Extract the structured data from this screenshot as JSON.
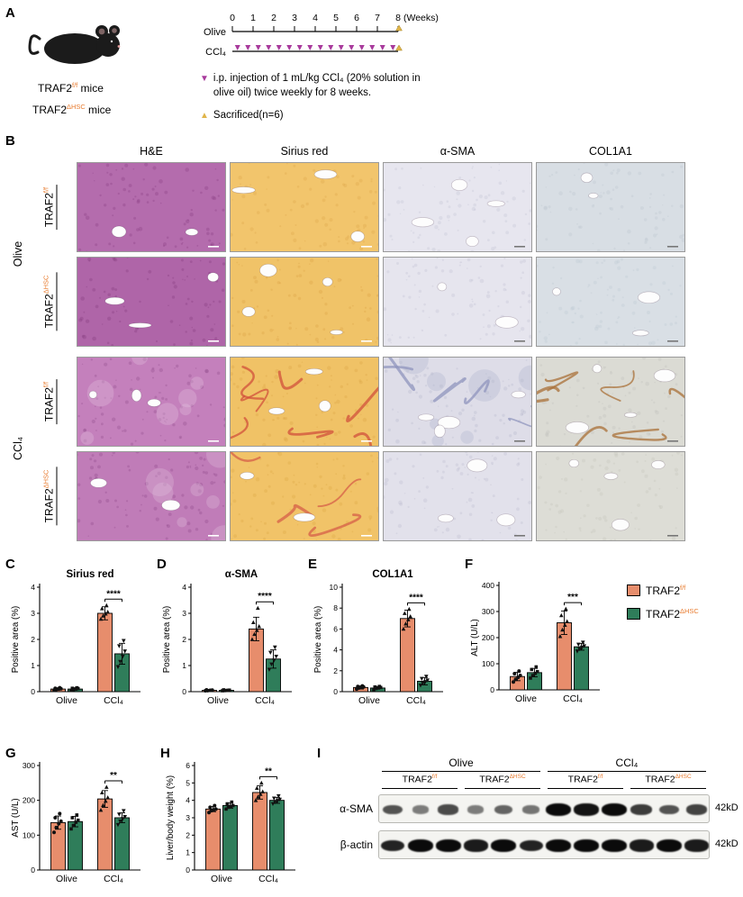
{
  "colors": {
    "traf2_ff": "#E78D6C",
    "traf2_dhsc": "#2F7D5A",
    "sup_orange": "#E87B2E",
    "injection_purple": "#A83A9C",
    "sacrifice_yellow": "#E0B54A"
  },
  "panel_a": {
    "label": "A",
    "mouse_lines": [
      {
        "prefix": "TRAF2",
        "sup": "f/f",
        "suffix": " mice"
      },
      {
        "prefix": "TRAF2",
        "sup": "ΔHSC",
        "suffix": " mice"
      }
    ],
    "timeline": {
      "weeks": [
        "0",
        "1",
        "2",
        "3",
        "4",
        "5",
        "6",
        "7",
        "8"
      ],
      "unit": "(Weeks)",
      "rows": [
        "Olive",
        "CCl₄"
      ]
    },
    "legend": [
      {
        "marker": "▼",
        "text": "i.p. injection of 1 mL/kg CCl₄ (20% solution in olive oil) twice weekly for 8 weeks."
      },
      {
        "marker": "▲",
        "text": "Sacrificed(n=6)"
      }
    ]
  },
  "panel_b": {
    "label": "B",
    "columns": [
      "H&E",
      "Sirius red",
      "α-SMA",
      "COL1A1"
    ],
    "groups": [
      {
        "label": "Olive"
      },
      {
        "label": "CCl₄"
      }
    ],
    "row_labels": [
      {
        "prefix": "TRAF2",
        "sup": "f/f"
      },
      {
        "prefix": "TRAF2",
        "sup": "ΔHSC"
      },
      {
        "prefix": "TRAF2",
        "sup": "f/f"
      },
      {
        "prefix": "TRAF2",
        "sup": "ΔHSC"
      }
    ],
    "cells": [
      [
        {
          "stain": "he",
          "base": "#B46CAD",
          "dot": "#8C4386",
          "scale": "#ffffff"
        },
        {
          "stain": "sirius",
          "base": "#F2C56C",
          "dot": "#DFA94D",
          "scale": "#ffffff"
        },
        {
          "stain": "asma",
          "base": "#E7E6EF",
          "dot": "#C6C5D6",
          "scale": "#777777"
        },
        {
          "stain": "col1a1",
          "base": "#D8DEE4",
          "dot": "#BFC8D2",
          "scale": "#777777"
        }
      ],
      [
        {
          "stain": "he",
          "base": "#AF65A8",
          "dot": "#863F80",
          "scale": "#ffffff"
        },
        {
          "stain": "sirius",
          "base": "#F0C368",
          "dot": "#DCA448",
          "scale": "#ffffff"
        },
        {
          "stain": "asma",
          "base": "#E6E5EE",
          "dot": "#C4C3D4",
          "scale": "#777777"
        },
        {
          "stain": "col1a1",
          "base": "#D9DFE5",
          "dot": "#C1CAD3",
          "scale": "#777777"
        }
      ],
      [
        {
          "stain": "he",
          "base": "#C480BC",
          "dot": "#94508E",
          "patch": "#E6C6E2",
          "scale": "#ffffff"
        },
        {
          "stain": "sirius",
          "base": "#F0C266",
          "dot": "#DDA647",
          "streak": "#D2503C",
          "streak_n": 7,
          "scale": "#ffffff"
        },
        {
          "stain": "asma",
          "base": "#DEDDE8",
          "dot": "#B9B9CD",
          "patch": "#A9AECB",
          "streak": "#8F94BE",
          "streak_n": 5,
          "scale": "#777777"
        },
        {
          "stain": "col1a1",
          "base": "#DBDBD4",
          "dot": "#C3C3BC",
          "streak": "#A97038",
          "streak_n": 6,
          "scale": "#777777"
        }
      ],
      [
        {
          "stain": "he",
          "base": "#C07CB8",
          "dot": "#914D8B",
          "patch": "#E2C2DE",
          "scale": "#ffffff"
        },
        {
          "stain": "sirius",
          "base": "#F1C368",
          "dot": "#DEA849",
          "streak": "#D65F48",
          "streak_n": 4,
          "scale": "#ffffff"
        },
        {
          "stain": "asma",
          "base": "#E2E1EB",
          "dot": "#BFBFD2",
          "scale": "#777777"
        },
        {
          "stain": "col1a1",
          "base": "#DDDDD6",
          "dot": "#C6C6BE",
          "scale": "#777777"
        }
      ]
    ]
  },
  "chart_data": [
    {
      "panel": "C",
      "type": "bar",
      "title": "Sirius red",
      "ylabel": "Positive area (%)",
      "ylim": [
        0,
        4
      ],
      "yticks": [
        0,
        1,
        2,
        3,
        4
      ],
      "group_labels": [
        "Olive",
        "CCl₄"
      ],
      "significance": "****",
      "series": [
        {
          "name": "TRAF2f/f",
          "color": "#E78D6C",
          "values": [
            0.1,
            3.0
          ],
          "errors": [
            0.05,
            0.25
          ],
          "points": [
            [
              0.05,
              0.08,
              0.1,
              0.11,
              0.13,
              0.15
            ],
            [
              2.78,
              2.9,
              2.98,
              3.05,
              3.18,
              3.3
            ]
          ]
        },
        {
          "name": "TRAF2ΔHSC",
          "color": "#2F7D5A",
          "values": [
            0.1,
            1.45
          ],
          "errors": [
            0.05,
            0.4
          ],
          "points": [
            [
              0.05,
              0.08,
              0.1,
              0.12,
              0.13,
              0.15
            ],
            [
              0.95,
              1.15,
              1.35,
              1.55,
              1.75,
              1.95
            ]
          ]
        }
      ]
    },
    {
      "panel": "D",
      "type": "bar",
      "title": "α-SMA",
      "ylabel": "Positive area (%)",
      "ylim": [
        0,
        4
      ],
      "yticks": [
        0,
        1,
        2,
        3,
        4
      ],
      "group_labels": [
        "Olive",
        "CCl₄"
      ],
      "significance": "****",
      "series": [
        {
          "name": "TRAF2f/f",
          "color": "#E78D6C",
          "values": [
            0.05,
            2.4
          ],
          "errors": [
            0.03,
            0.45
          ],
          "points": [
            [
              0.03,
              0.04,
              0.05,
              0.06,
              0.07,
              0.05
            ],
            [
              2.0,
              2.2,
              2.35,
              2.5,
              2.65,
              3.2
            ]
          ]
        },
        {
          "name": "TRAF2ΔHSC",
          "color": "#2F7D5A",
          "values": [
            0.05,
            1.25
          ],
          "errors": [
            0.03,
            0.35
          ],
          "points": [
            [
              0.03,
              0.04,
              0.05,
              0.06,
              0.07,
              0.05
            ],
            [
              0.85,
              1.05,
              1.2,
              1.35,
              1.5,
              1.7
            ]
          ]
        }
      ]
    },
    {
      "panel": "E",
      "type": "bar",
      "title": "COL1A1",
      "ylabel": "Positive area (%)",
      "ylim": [
        0,
        10
      ],
      "yticks": [
        0,
        2,
        4,
        6,
        8,
        10
      ],
      "group_labels": [
        "Olive",
        "CCl₄"
      ],
      "significance": "****",
      "series": [
        {
          "name": "TRAF2f/f",
          "color": "#E78D6C",
          "values": [
            0.4,
            7.0
          ],
          "errors": [
            0.15,
            0.8
          ],
          "points": [
            [
              0.25,
              0.35,
              0.4,
              0.45,
              0.5,
              0.55
            ],
            [
              6.0,
              6.5,
              6.9,
              7.2,
              7.5,
              7.9
            ]
          ]
        },
        {
          "name": "TRAF2ΔHSC",
          "color": "#2F7D5A",
          "values": [
            0.35,
            1.0
          ],
          "errors": [
            0.15,
            0.35
          ],
          "points": [
            [
              0.2,
              0.3,
              0.35,
              0.4,
              0.45,
              0.5
            ],
            [
              0.6,
              0.8,
              0.95,
              1.1,
              1.25,
              1.45
            ]
          ]
        }
      ]
    },
    {
      "panel": "F",
      "type": "bar",
      "title": "",
      "ylabel": "ALT (U/L)",
      "ylim": [
        0,
        400
      ],
      "yticks": [
        0,
        100,
        200,
        300,
        400
      ],
      "group_labels": [
        "Olive",
        "CCl₄"
      ],
      "significance": "***",
      "series": [
        {
          "name": "TRAF2f/f",
          "color": "#E78D6C",
          "values": [
            51,
            257
          ],
          "errors": [
            16,
            45
          ],
          "points": [
            [
              30,
              40,
              48,
              55,
              62,
              72
            ],
            [
              205,
              230,
              248,
              262,
              285,
              310
            ]
          ]
        },
        {
          "name": "TRAF2ΔHSC",
          "color": "#2F7D5A",
          "values": [
            66,
            165
          ],
          "errors": [
            16,
            13
          ],
          "points": [
            [
              45,
              55,
              63,
              70,
              78,
              88
            ],
            [
              148,
              156,
              163,
              168,
              174,
              182
            ]
          ]
        }
      ]
    },
    {
      "panel": "G",
      "type": "bar",
      "title": "",
      "ylabel": "AST (U/L)",
      "ylim": [
        0,
        300
      ],
      "yticks": [
        0,
        100,
        200,
        300
      ],
      "group_labels": [
        "Olive",
        "CCl₄"
      ],
      "significance": "**",
      "series": [
        {
          "name": "TRAF2f/f",
          "color": "#E78D6C",
          "values": [
            136,
            204
          ],
          "errors": [
            19,
            24
          ],
          "points": [
            [
              108,
              122,
              133,
              140,
              150,
              162
            ],
            [
              172,
              186,
              198,
              208,
              222,
              238
            ]
          ]
        },
        {
          "name": "TRAF2ΔHSC",
          "color": "#2F7D5A",
          "values": [
            139,
            150
          ],
          "errors": [
            15,
            14
          ],
          "points": [
            [
              118,
              128,
              137,
              143,
              150,
              158
            ],
            [
              130,
              140,
              147,
              153,
              160,
              170
            ]
          ]
        }
      ]
    },
    {
      "panel": "H",
      "type": "bar",
      "title": "",
      "ylabel": "Liver/body weight (%)",
      "ylim": [
        0,
        6
      ],
      "yticks": [
        0,
        1,
        2,
        3,
        4,
        5,
        6
      ],
      "group_labels": [
        "Olive",
        "CCl₄"
      ],
      "significance": "**",
      "series": [
        {
          "name": "TRAF2f/f",
          "color": "#E78D6C",
          "values": [
            3.5,
            4.45
          ],
          "errors": [
            0.15,
            0.38
          ],
          "points": [
            [
              3.3,
              3.4,
              3.45,
              3.5,
              3.6,
              3.7
            ],
            [
              4.0,
              4.2,
              4.35,
              4.5,
              4.7,
              5.0
            ]
          ]
        },
        {
          "name": "TRAF2ΔHSC",
          "color": "#2F7D5A",
          "values": [
            3.7,
            4.0
          ],
          "errors": [
            0.15,
            0.17
          ],
          "points": [
            [
              3.5,
              3.6,
              3.65,
              3.7,
              3.8,
              3.9
            ],
            [
              3.8,
              3.9,
              3.98,
              4.05,
              4.12,
              4.25
            ]
          ]
        }
      ]
    }
  ],
  "series_legend": [
    {
      "prefix": "TRAF2",
      "sup": "f/f",
      "color": "#E78D6C"
    },
    {
      "prefix": "TRAF2",
      "sup": "ΔHSC",
      "color": "#2F7D5A"
    }
  ],
  "panel_i": {
    "label": "I",
    "groups": [
      "Olive",
      "CCl₄"
    ],
    "subgroups": [
      {
        "prefix": "TRAF2",
        "sup": "f/f"
      },
      {
        "prefix": "TRAF2",
        "sup": "ΔHSC"
      },
      {
        "prefix": "TRAF2",
        "sup": "f/f"
      },
      {
        "prefix": "TRAF2",
        "sup": "ΔHSC"
      }
    ],
    "rows": [
      {
        "label": "α-SMA",
        "size": "42kD",
        "intensities": [
          0.55,
          0.3,
          0.6,
          0.3,
          0.45,
          0.35,
          1,
          0.95,
          1,
          0.7,
          0.55,
          0.65
        ]
      },
      {
        "label": "β-actin",
        "size": "42kD",
        "intensities": [
          0.85,
          1,
          1,
          0.9,
          1,
          0.85,
          1,
          1,
          1,
          0.9,
          1,
          0.9
        ]
      }
    ]
  }
}
